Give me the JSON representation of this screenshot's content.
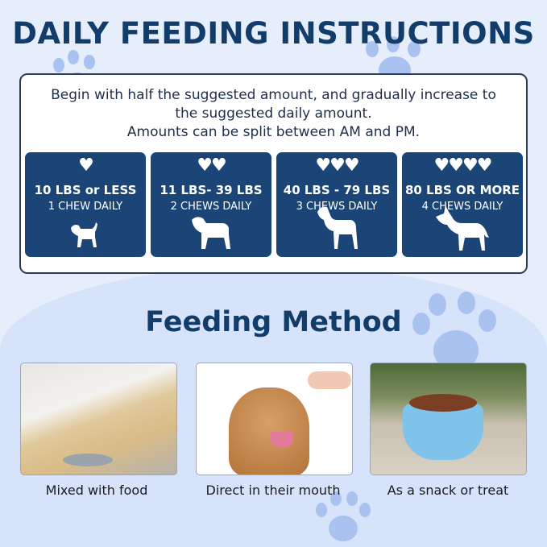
{
  "title": "DAILY FEEDING INSTRUCTIONS",
  "intro": {
    "line1": "Begin with half the suggested amount, and gradually increase to",
    "line2": "the suggested daily amount.",
    "line3": "Amounts can be split between AM and PM."
  },
  "cards": [
    {
      "hearts": "♥",
      "weight": "10 LBS or LESS",
      "chews": "1  CHEW DAILY",
      "icon": "small-dog-icon"
    },
    {
      "hearts": "♥♥",
      "weight": "11 LBS- 39 LBS",
      "chews": "2  CHEWS DAILY",
      "icon": "medium-dog-icon"
    },
    {
      "hearts": "♥♥♥",
      "weight": "40 LBS - 79 LBS",
      "chews": "3  CHEWS DAILY",
      "icon": "large-dog-icon"
    },
    {
      "hearts": "♥♥♥♥",
      "weight": "80 LBS OR MORE",
      "chews": "4  CHEWS DAILY",
      "icon": "giant-dog-icon"
    }
  ],
  "method": {
    "title": "Feeding Method",
    "items": [
      {
        "caption": "Mixed with food"
      },
      {
        "caption": "Direct in their mouth"
      },
      {
        "caption": "As a snack or treat"
      }
    ]
  },
  "colors": {
    "navy": "#123d6b",
    "card": "#1a4576",
    "background": "#e6eefc",
    "paw": "#a9c2f0"
  }
}
